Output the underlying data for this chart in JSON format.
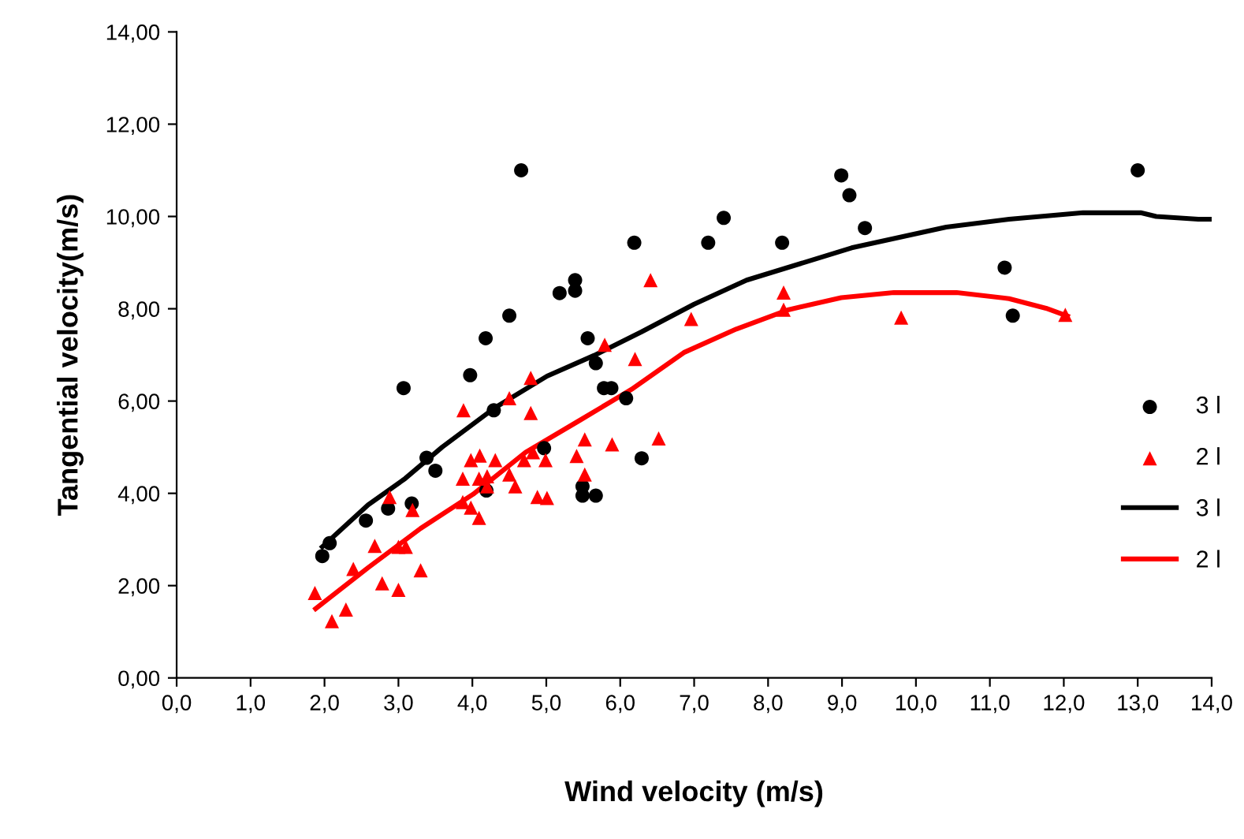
{
  "chart_data": {
    "type": "scatter",
    "xlabel": "Wind velocity (m/s)",
    "ylabel": "Tangential velocity(m/s)",
    "xlim": [
      0,
      14
    ],
    "ylim": [
      0,
      14
    ],
    "xticks": [
      {
        "value": 0,
        "label": "0,0"
      },
      {
        "value": 1,
        "label": "1,0"
      },
      {
        "value": 2,
        "label": "2,0"
      },
      {
        "value": 3,
        "label": "3,0"
      },
      {
        "value": 4,
        "label": "4,0"
      },
      {
        "value": 5,
        "label": "5,0"
      },
      {
        "value": 6,
        "label": "6,0"
      },
      {
        "value": 7,
        "label": "7,0"
      },
      {
        "value": 8,
        "label": "8,0"
      },
      {
        "value": 9,
        "label": "9,0"
      },
      {
        "value": 10,
        "label": "10,0"
      },
      {
        "value": 11,
        "label": "11,0"
      },
      {
        "value": 12,
        "label": "12,0"
      },
      {
        "value": 13,
        "label": "13,0"
      },
      {
        "value": 14,
        "label": "14,0"
      }
    ],
    "yticks": [
      {
        "value": 0,
        "label": "0,00"
      },
      {
        "value": 2,
        "label": "2,00"
      },
      {
        "value": 4,
        "label": "4,00"
      },
      {
        "value": 6,
        "label": "6,00"
      },
      {
        "value": 8,
        "label": "8,00"
      },
      {
        "value": 10,
        "label": "10,00"
      },
      {
        "value": 12,
        "label": "12,00"
      },
      {
        "value": 14,
        "label": "14,00"
      }
    ],
    "grid": false,
    "legend": "right",
    "series": [
      {
        "name": "3 l",
        "marker": "circle",
        "color": "#000000",
        "x": [
          1.97,
          2.07,
          2.56,
          2.86,
          3.18,
          3.07,
          3.38,
          3.5,
          3.97,
          4.18,
          4.29,
          4.5,
          4.66,
          4.19,
          4.97,
          5.18,
          5.39,
          5.39,
          5.56,
          5.67,
          5.78,
          5.88,
          6.08,
          6.19,
          6.29,
          5.49,
          5.67,
          5.49,
          7.19,
          7.4,
          8.19,
          8.99,
          9.1,
          9.31,
          11.2,
          11.31,
          13.0
        ],
        "values": [
          2.64,
          2.92,
          3.41,
          3.67,
          3.78,
          6.28,
          4.77,
          4.49,
          6.56,
          7.36,
          5.8,
          7.85,
          11.0,
          4.06,
          4.98,
          8.34,
          8.62,
          8.39,
          7.36,
          6.82,
          6.28,
          6.28,
          6.06,
          9.43,
          4.76,
          3.95,
          3.95,
          4.15,
          9.43,
          9.97,
          9.43,
          10.89,
          10.46,
          9.75,
          8.89,
          7.85,
          11.0
        ]
      },
      {
        "name": "2 l",
        "marker": "triangle",
        "color": "#ff0000",
        "x": [
          1.87,
          2.1,
          2.29,
          2.39,
          2.68,
          2.78,
          2.88,
          3.0,
          3.0,
          3.1,
          3.19,
          3.3,
          3.88,
          3.87,
          3.87,
          3.98,
          3.98,
          4.09,
          4.1,
          4.09,
          4.2,
          4.2,
          4.31,
          4.5,
          4.5,
          4.58,
          4.7,
          4.79,
          4.79,
          4.82,
          4.88,
          5.01,
          4.99,
          5.41,
          5.52,
          5.52,
          5.79,
          5.89,
          6.2,
          6.41,
          6.52,
          6.96,
          8.21,
          8.21,
          9.8,
          12.02
        ],
        "values": [
          1.84,
          1.23,
          1.48,
          2.36,
          2.86,
          2.05,
          3.92,
          1.91,
          2.84,
          2.84,
          3.64,
          2.33,
          5.8,
          4.32,
          3.81,
          4.72,
          3.69,
          3.47,
          4.82,
          4.32,
          4.37,
          4.15,
          4.72,
          6.06,
          4.41,
          4.15,
          4.72,
          6.5,
          5.74,
          4.89,
          3.92,
          3.9,
          4.72,
          4.81,
          5.17,
          4.41,
          7.22,
          5.06,
          6.91,
          8.62,
          5.19,
          7.78,
          8.35,
          7.98,
          7.81,
          7.87
        ]
      },
      {
        "name": "3 l",
        "type": "line",
        "line_style": "solid",
        "color": "#000000",
        "x": [
          1.97,
          2.59,
          3.09,
          3.59,
          4.3,
          5.01,
          5.65,
          6.29,
          7.0,
          7.71,
          9.13,
          10.41,
          11.26,
          12.26,
          13.04,
          13.25,
          13.82,
          14.0
        ],
        "values": [
          2.84,
          3.75,
          4.32,
          5.0,
          5.85,
          6.54,
          6.99,
          7.5,
          8.1,
          8.62,
          9.32,
          9.77,
          9.94,
          10.08,
          10.08,
          10.0,
          9.94,
          9.94
        ]
      },
      {
        "name": "2 l",
        "type": "line",
        "line_style": "solid",
        "color": "#ff0000",
        "x": [
          1.88,
          2.59,
          3.3,
          4.01,
          4.72,
          5.44,
          6.15,
          6.86,
          7.57,
          8.28,
          8.99,
          9.7,
          10.55,
          11.26,
          11.76,
          12.05
        ],
        "values": [
          1.5,
          2.39,
          3.24,
          3.98,
          4.89,
          5.57,
          6.25,
          7.05,
          7.56,
          7.98,
          8.24,
          8.35,
          8.35,
          8.22,
          8.01,
          7.84
        ]
      }
    ]
  }
}
